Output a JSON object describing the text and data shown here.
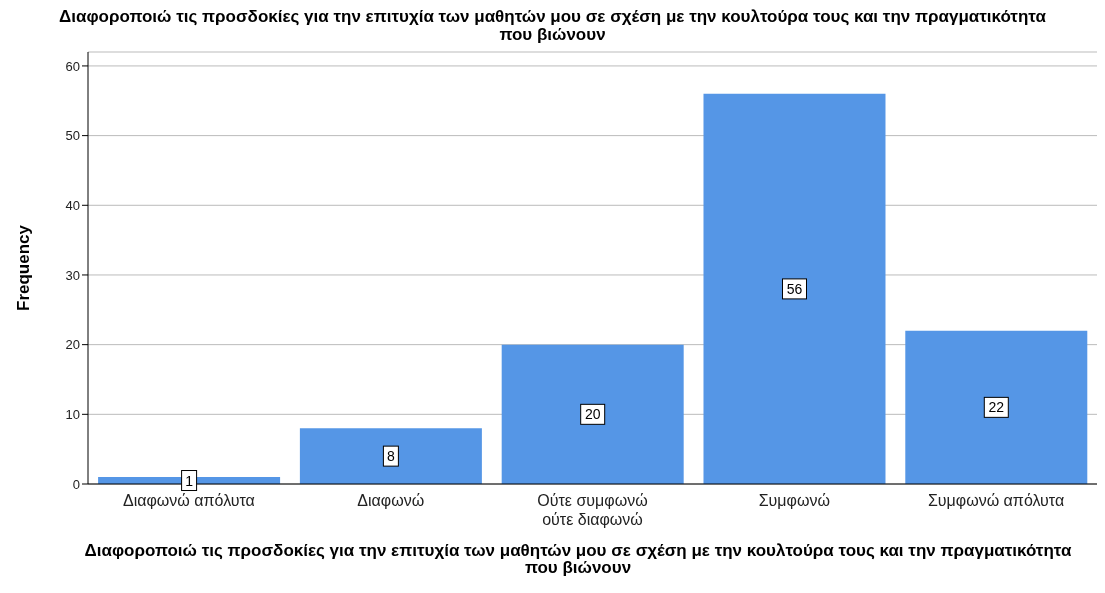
{
  "chart_data": {
    "type": "bar",
    "title": "Διαφοροποιώ τις προσδοκίες για την επιτυχία των μαθητών μου σε σχέση με την κουλτούρα τους και την πραγματικότητα που βιώνουν",
    "xlabel": "Διαφοροποιώ τις προσδοκίες για την επιτυχία των μαθητών μου σε σχέση με την κουλτούρα τους και την πραγματικότητα που βιώνουν",
    "ylabel": "Frequency",
    "categories": [
      "Διαφωνώ απόλυτα",
      "Διαφωνώ",
      "Ούτε συμφωνώ ούτε διαφωνώ",
      "Συμφωνώ",
      "Συμφωνώ απόλυτα"
    ],
    "values": [
      1,
      8,
      20,
      56,
      22
    ],
    "color": "#5596e6",
    "ylim": [
      0,
      62
    ],
    "yticks": [
      0,
      10,
      20,
      30,
      40,
      50,
      60
    ],
    "grid": "y",
    "data_labels": true,
    "legend": false
  }
}
